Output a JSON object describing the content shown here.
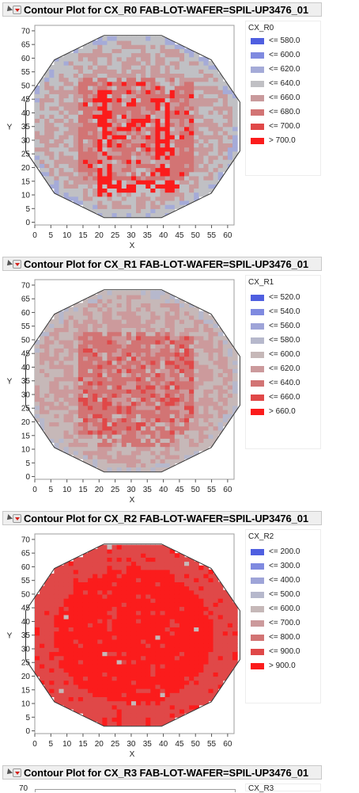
{
  "panels": [
    {
      "title": "Contour Plot for CX_R0 FAB-LOT-WAFER=SPIL-UP3476_01",
      "legend_title": "CX_R0",
      "legend": [
        {
          "label": "<= 580.0",
          "color": "#4f5fe0"
        },
        {
          "label": "<= 600.0",
          "color": "#7f8ae0"
        },
        {
          "label": "<= 620.0",
          "color": "#a5abd8"
        },
        {
          "label": "<= 640.0",
          "color": "#c0c0c4"
        },
        {
          "label": "<= 660.0",
          "color": "#c99a9c"
        },
        {
          "label": "<= 680.0",
          "color": "#d27474"
        },
        {
          "label": "<= 700.0",
          "color": "#e04848"
        },
        {
          "label": "> 700.0",
          "color": "#fb1c1c"
        }
      ],
      "pattern": {
        "outer": 3,
        "ring": 4,
        "core": 5,
        "hot": 7,
        "edge": 2
      }
    },
    {
      "title": "Contour Plot for CX_R1 FAB-LOT-WAFER=SPIL-UP3476_01",
      "legend_title": "CX_R1",
      "legend": [
        {
          "label": "<= 520.0",
          "color": "#4f5fe0"
        },
        {
          "label": "<= 540.0",
          "color": "#7f8ae0"
        },
        {
          "label": "<= 560.0",
          "color": "#9ea4d8"
        },
        {
          "label": "<= 580.0",
          "color": "#b6b8cc"
        },
        {
          "label": "<= 600.0",
          "color": "#c6b8b8"
        },
        {
          "label": "<= 620.0",
          "color": "#cc9a9c"
        },
        {
          "label": "<= 640.0",
          "color": "#d27474"
        },
        {
          "label": "<= 660.0",
          "color": "#e04848"
        },
        {
          "label": "> 660.0",
          "color": "#fb1c1c"
        }
      ],
      "pattern": {
        "outer": 4,
        "ring": 5,
        "core": 6,
        "hot": 7,
        "edge": 3
      }
    },
    {
      "title": "Contour Plot for CX_R2 FAB-LOT-WAFER=SPIL-UP3476_01",
      "legend_title": "CX_R2",
      "legend": [
        {
          "label": "<= 200.0",
          "color": "#4f5fe0"
        },
        {
          "label": "<= 300.0",
          "color": "#7f8ae0"
        },
        {
          "label": "<= 400.0",
          "color": "#9ea4d8"
        },
        {
          "label": "<= 500.0",
          "color": "#b6b8cc"
        },
        {
          "label": "<= 600.0",
          "color": "#c6b8b8"
        },
        {
          "label": "<= 700.0",
          "color": "#cc9a9c"
        },
        {
          "label": "<= 800.0",
          "color": "#d27474"
        },
        {
          "label": "<= 900.0",
          "color": "#e04848"
        },
        {
          "label": "> 900.0",
          "color": "#fb1c1c"
        }
      ],
      "pattern": {
        "outer": 7,
        "ring": 7,
        "core": 8,
        "hot": 8,
        "edge": 7
      }
    },
    {
      "title": "Contour Plot for CX_R3 FAB-LOT-WAFER=SPIL-UP3476_01",
      "legend_title": "CX_R3",
      "legend": [],
      "pattern": null
    }
  ],
  "axes": {
    "xlabel": "X",
    "ylabel": "Y",
    "xticks": [
      "0",
      "5",
      "10",
      "15",
      "20",
      "25",
      "30",
      "35",
      "40",
      "45",
      "50",
      "55",
      "60"
    ],
    "yticks": [
      "0",
      "5",
      "10",
      "15",
      "20",
      "25",
      "30",
      "35",
      "40",
      "45",
      "50",
      "55",
      "60",
      "65",
      "70"
    ]
  },
  "chart_data": [
    {
      "type": "heatmap",
      "title": "Contour Plot for CX_R0 FAB-LOT-WAFER=SPIL-UP3476_01",
      "xlabel": "X",
      "ylabel": "Y",
      "xlim": [
        0,
        62
      ],
      "ylim": [
        -1,
        72
      ],
      "legend_title": "CX_R0",
      "levels": [
        "<= 580.0",
        "<= 600.0",
        "<= 620.0",
        "<= 640.0",
        "<= 660.0",
        "<= 680.0",
        "<= 700.0",
        "> 700.0"
      ],
      "grid": false
    },
    {
      "type": "heatmap",
      "title": "Contour Plot for CX_R1 FAB-LOT-WAFER=SPIL-UP3476_01",
      "xlabel": "X",
      "ylabel": "Y",
      "xlim": [
        0,
        62
      ],
      "ylim": [
        -1,
        72
      ],
      "legend_title": "CX_R1",
      "levels": [
        "<= 520.0",
        "<= 540.0",
        "<= 560.0",
        "<= 580.0",
        "<= 600.0",
        "<= 620.0",
        "<= 640.0",
        "<= 660.0",
        "> 660.0"
      ],
      "grid": false
    },
    {
      "type": "heatmap",
      "title": "Contour Plot for CX_R2 FAB-LOT-WAFER=SPIL-UP3476_01",
      "xlabel": "X",
      "ylabel": "Y",
      "xlim": [
        0,
        62
      ],
      "ylim": [
        -1,
        72
      ],
      "legend_title": "CX_R2",
      "levels": [
        "<= 200.0",
        "<= 300.0",
        "<= 400.0",
        "<= 500.0",
        "<= 600.0",
        "<= 700.0",
        "<= 800.0",
        "<= 900.0",
        "> 900.0"
      ],
      "grid": false
    }
  ]
}
